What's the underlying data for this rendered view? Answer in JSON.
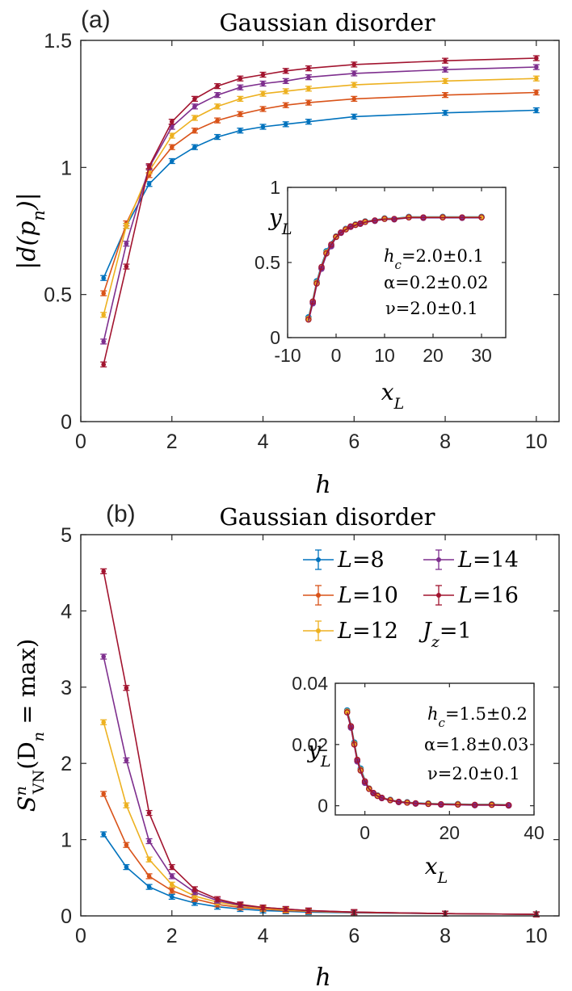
{
  "chart_data": [
    {
      "type": "line",
      "panel_label": "(a)",
      "title": "Gaussian disorder",
      "xlabel": "h",
      "ylabel": "|d(p_n)|",
      "ylabel_main": "|d(p",
      "ylabel_sub": "n",
      "ylabel_tail": ")|",
      "xlim": [
        0,
        10.5
      ],
      "ylim": [
        0,
        1.5
      ],
      "xticks": [
        0,
        2,
        4,
        6,
        8,
        10
      ],
      "yticks": [
        0,
        0.5,
        1,
        1.5
      ],
      "yticklabels": [
        "0",
        "0.5",
        "1",
        "1.5"
      ],
      "x": [
        0.5,
        1,
        1.5,
        2,
        2.5,
        3,
        3.5,
        4,
        4.5,
        5,
        6,
        8,
        10
      ],
      "series": [
        {
          "name": "L=8",
          "color": "#0072BD",
          "values": [
            0.565,
            0.77,
            0.935,
            1.025,
            1.08,
            1.12,
            1.145,
            1.16,
            1.17,
            1.18,
            1.2,
            1.215,
            1.225
          ]
        },
        {
          "name": "L=10",
          "color": "#D95319",
          "values": [
            0.505,
            0.78,
            0.97,
            1.08,
            1.145,
            1.185,
            1.21,
            1.23,
            1.245,
            1.255,
            1.27,
            1.285,
            1.295
          ]
        },
        {
          "name": "L=12",
          "color": "#EDB120",
          "values": [
            0.42,
            0.77,
            0.985,
            1.125,
            1.195,
            1.24,
            1.27,
            1.29,
            1.3,
            1.31,
            1.325,
            1.34,
            1.35
          ]
        },
        {
          "name": "L=14",
          "color": "#7E2F8E",
          "values": [
            0.315,
            0.7,
            1.0,
            1.16,
            1.24,
            1.285,
            1.315,
            1.33,
            1.34,
            1.355,
            1.37,
            1.385,
            1.395
          ]
        },
        {
          "name": "L=16",
          "color": "#A2142F",
          "values": [
            0.225,
            0.61,
            1.005,
            1.18,
            1.27,
            1.32,
            1.35,
            1.365,
            1.38,
            1.39,
            1.405,
            1.42,
            1.43
          ]
        }
      ],
      "inset": {
        "xlabel": "x_L",
        "xlabel_main": "x",
        "xlabel_sub": "L",
        "ylabel": "y_L",
        "ylabel_main": "y",
        "ylabel_sub": "L",
        "xlim": [
          -10,
          35
        ],
        "ylim": [
          0,
          1
        ],
        "xticks": [
          -10,
          0,
          10,
          20,
          30
        ],
        "xticklabels": [
          "-10",
          "0",
          "10",
          "20",
          "30"
        ],
        "yticks": [
          0,
          0.5,
          1
        ],
        "yticklabels": [
          "0",
          "0.5",
          "1"
        ],
        "annotations": [
          "h_c=2.0±0.1",
          "α=0.2±0.02",
          "ν=2.0±0.1"
        ],
        "ann_hc_value": "=2.0±0.1",
        "ann_alpha": "α=0.2±0.02",
        "ann_nu": "ν=2.0±0.1",
        "curve_x": [
          -5.7,
          -4.8,
          -4,
          -3,
          -2,
          -1,
          0,
          1,
          2,
          3,
          4,
          5,
          6,
          8,
          10,
          12,
          15,
          18,
          22,
          26,
          30
        ],
        "curve_y": [
          0.12,
          0.24,
          0.36,
          0.47,
          0.56,
          0.62,
          0.67,
          0.7,
          0.72,
          0.74,
          0.75,
          0.76,
          0.77,
          0.78,
          0.79,
          0.79,
          0.8,
          0.8,
          0.8,
          0.8,
          0.8
        ]
      }
    },
    {
      "type": "line",
      "panel_label": "(b)",
      "title": "Gaussian disorder",
      "xlabel": "h",
      "ylabel": "S^n_VN(D_n = max)",
      "ylabel_main": "S",
      "ylabel_sup": "n",
      "ylabel_sub": "VN",
      "ylabel_tail": "(D",
      "ylabel_sub2": "n",
      "ylabel_tail2": " = max)",
      "xlim": [
        0,
        10.5
      ],
      "ylim": [
        0,
        5
      ],
      "xticks": [
        0,
        2,
        4,
        6,
        8,
        10
      ],
      "yticks": [
        0,
        1,
        2,
        3,
        4,
        5
      ],
      "yticklabels": [
        "0",
        "1",
        "2",
        "3",
        "4",
        "5"
      ],
      "x": [
        0.5,
        1,
        1.5,
        2,
        2.5,
        3,
        3.5,
        4,
        4.5,
        5,
        6,
        8,
        10
      ],
      "series": [
        {
          "name": "L=8",
          "color": "#0072BD",
          "values": [
            1.07,
            0.64,
            0.38,
            0.25,
            0.17,
            0.12,
            0.09,
            0.07,
            0.06,
            0.05,
            0.04,
            0.03,
            0.02
          ]
        },
        {
          "name": "L=10",
          "color": "#D95319",
          "values": [
            1.6,
            0.93,
            0.52,
            0.33,
            0.22,
            0.15,
            0.11,
            0.09,
            0.07,
            0.06,
            0.045,
            0.03,
            0.02
          ]
        },
        {
          "name": "L=12",
          "color": "#EDB120",
          "values": [
            2.54,
            1.45,
            0.74,
            0.41,
            0.26,
            0.18,
            0.13,
            0.1,
            0.08,
            0.065,
            0.05,
            0.03,
            0.02
          ]
        },
        {
          "name": "L=14",
          "color": "#7E2F8E",
          "values": [
            3.4,
            2.04,
            0.98,
            0.52,
            0.31,
            0.2,
            0.14,
            0.11,
            0.09,
            0.07,
            0.05,
            0.03,
            0.02
          ]
        },
        {
          "name": "L=16",
          "color": "#A2142F",
          "values": [
            4.52,
            2.99,
            1.35,
            0.64,
            0.35,
            0.22,
            0.15,
            0.11,
            0.09,
            0.07,
            0.05,
            0.03,
            0.02
          ]
        }
      ],
      "legend": {
        "placement": "top-right",
        "entries": [
          "L=8",
          "L=14",
          "L=10",
          "L=16",
          "L=12"
        ],
        "L_prefix": "L",
        "entry_values": [
          "=8",
          "=14",
          "=10",
          "=16",
          "=12"
        ],
        "extra": "J_z=1",
        "extra_main": "J",
        "extra_sub": "z",
        "extra_value": "=1"
      },
      "inset": {
        "xlabel": "x_L",
        "xlabel_main": "x",
        "xlabel_sub": "L",
        "ylabel": "y_L",
        "ylabel_main": "y",
        "ylabel_sub": "L",
        "xlim": [
          -7,
          40
        ],
        "ylim": [
          -0.003,
          0.04
        ],
        "xticks": [
          0,
          20,
          40
        ],
        "xticklabels": [
          "0",
          "20",
          "40"
        ],
        "yticks": [
          0,
          0.02,
          0.04
        ],
        "yticklabels": [
          "0",
          "0.02",
          "0.04"
        ],
        "annotations": [
          "h_c=1.5±0.2",
          "α=1.8±0.03",
          "ν=2.0±0.1"
        ],
        "ann_hc_value": "=1.5±0.2",
        "ann_alpha": "α=1.8±0.03",
        "ann_nu": "ν=2.0±0.1",
        "curve_x": [
          -4.2,
          -3.3,
          -2.5,
          -1.8,
          -1,
          0,
          1,
          2,
          3,
          4,
          6,
          8,
          10,
          12,
          15,
          18,
          22,
          26,
          30,
          34
        ],
        "curve_y": [
          0.0305,
          0.026,
          0.02,
          0.015,
          0.0115,
          0.008,
          0.0055,
          0.0042,
          0.0032,
          0.0026,
          0.0018,
          0.0013,
          0.001,
          0.0008,
          0.0006,
          0.0005,
          0.0004,
          0.0003,
          0.0003,
          0.0002
        ]
      }
    }
  ]
}
